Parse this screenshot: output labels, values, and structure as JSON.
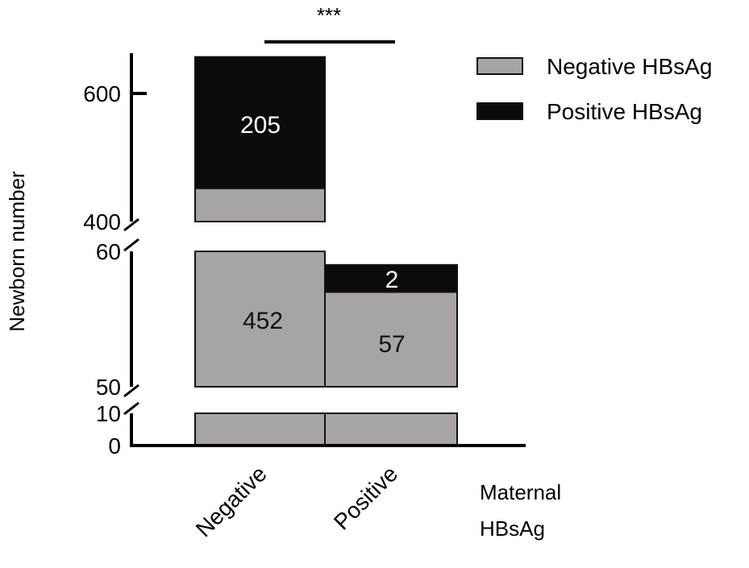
{
  "chart_data": {
    "type": "bar",
    "stacked": true,
    "title": "",
    "xlabel": "Maternal HBsAg",
    "ylabel": "Newborn number",
    "categories": [
      "Negative",
      "Positive"
    ],
    "series": [
      {
        "name": "Negative HBsAg",
        "values": [
          452,
          57
        ],
        "color": "#a8a4a5"
      },
      {
        "name": "Positive HBsAg",
        "values": [
          205,
          2
        ],
        "color": "#0b0b0b"
      }
    ],
    "y_axis_segments": [
      [
        0,
        10
      ],
      [
        50,
        60
      ],
      [
        400,
        660
      ]
    ],
    "y_tick_labels": [
      "0",
      "10",
      "50",
      "60",
      "400",
      "600"
    ],
    "y_ticks": [
      0,
      10,
      50,
      60,
      400,
      600
    ],
    "significance": "***",
    "legend_position": "top-right",
    "grid": false
  }
}
